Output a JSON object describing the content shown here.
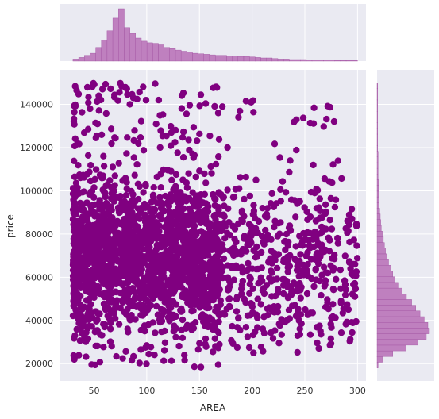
{
  "chart_data": {
    "type": "scatter",
    "subtype": "jointplot-with-marginal-histograms",
    "title": "",
    "xlabel": "AREA",
    "ylabel": "price",
    "xlim": [
      18,
      308
    ],
    "ylim": [
      12000,
      156000
    ],
    "x_ticks": [
      50,
      100,
      150,
      200,
      250,
      300
    ],
    "x_tick_labels": [
      "50",
      "100",
      "150",
      "200",
      "250",
      "300"
    ],
    "y_ticks": [
      20000,
      40000,
      60000,
      80000,
      100000,
      120000,
      140000
    ],
    "y_tick_labels": [
      "20000",
      "40000",
      "60000",
      "80000",
      "100000",
      "120000",
      "140000"
    ],
    "grid": true,
    "legend": "none",
    "colors": {
      "points": "#800080",
      "hist": "#bf80bf",
      "hist_edge": "#a050a0",
      "background": "#eaeaf2",
      "grid": "#ffffff"
    },
    "point_cloud": {
      "approx_count": 5000,
      "x_range": [
        30,
        300
      ],
      "y_range": [
        18000,
        150000
      ],
      "dense_region": {
        "x": [
          30,
          170
        ],
        "y": [
          25000,
          115000
        ]
      }
    },
    "marginal_x_hist": {
      "bin_start": 30,
      "bin_width": 5.4,
      "counts": [
        4,
        7,
        11,
        15,
        26,
        40,
        58,
        82,
        100,
        64,
        53,
        44,
        38,
        35,
        34,
        31,
        26,
        24,
        21,
        19,
        17,
        15,
        14,
        13,
        12,
        11,
        11,
        10,
        10,
        9,
        9,
        8,
        7,
        6,
        6,
        5,
        4,
        4,
        3,
        3,
        3,
        2,
        2,
        2,
        2,
        2,
        1,
        1,
        1,
        1
      ]
    },
    "marginal_y_hist": {
      "bin_start": 18000,
      "bin_width": 2640,
      "counts": [
        2,
        10,
        30,
        55,
        78,
        94,
        100,
        97,
        90,
        82,
        74,
        66,
        56,
        48,
        40,
        34,
        30,
        26,
        22,
        19,
        16,
        14,
        12,
        10,
        8,
        7,
        6,
        5,
        4,
        4,
        3,
        3,
        3,
        2,
        2,
        2,
        2,
        2,
        1,
        1,
        1,
        1,
        1,
        1,
        1,
        1,
        1,
        1,
        1,
        1
      ]
    }
  }
}
